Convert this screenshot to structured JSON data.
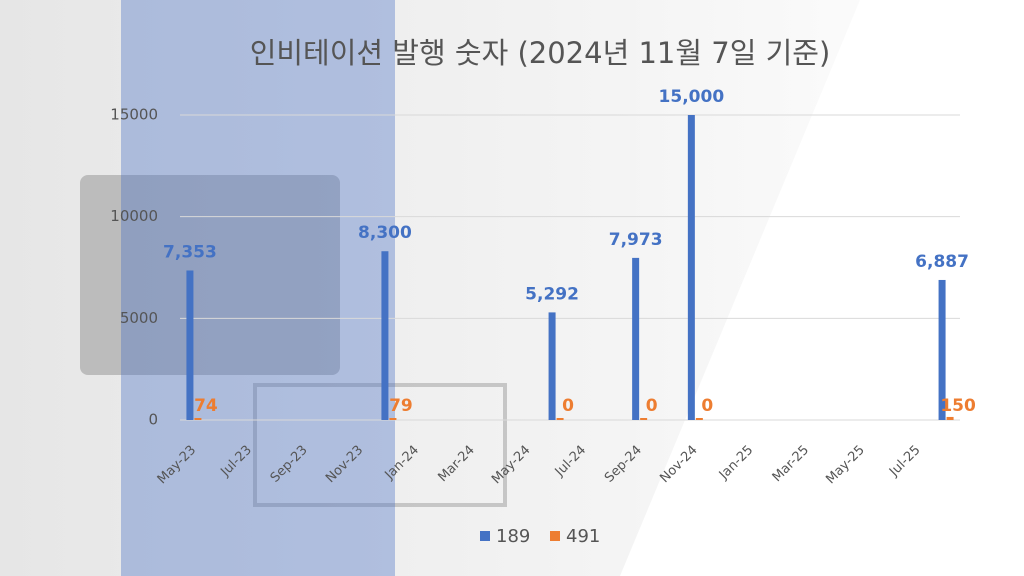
{
  "chart_data": {
    "type": "bar",
    "title": "인비테이션 발행 숫자 (2024년 11월 7일 기준)",
    "categories": [
      "May-23",
      null,
      "Jul-23",
      null,
      "Sep-23",
      null,
      "Nov-23",
      null,
      "Jan-24",
      null,
      "Mar-24",
      null,
      "May-24",
      null,
      "Jul-24",
      null,
      "Sep-24",
      null,
      "Nov-24",
      null,
      "Jan-25",
      null,
      "Mar-25",
      null,
      "May-25",
      null,
      "Jul-25",
      null
    ],
    "series": [
      {
        "name": "189",
        "color": "#4472c4",
        "values": [
          7353,
          null,
          null,
          null,
          null,
          null,
          null,
          8300,
          null,
          null,
          null,
          null,
          null,
          5292,
          null,
          null,
          7973,
          null,
          15000,
          null,
          null,
          null,
          null,
          null,
          null,
          null,
          null,
          6887
        ],
        "value_labels": [
          "7,353",
          null,
          null,
          null,
          null,
          null,
          null,
          "8,300",
          null,
          null,
          null,
          null,
          null,
          "5,292",
          null,
          null,
          "7,973",
          null,
          "15,000",
          null,
          null,
          null,
          null,
          null,
          null,
          null,
          null,
          "6,887"
        ]
      },
      {
        "name": "491",
        "color": "#ed7d31",
        "values": [
          74,
          null,
          null,
          null,
          null,
          null,
          null,
          79,
          null,
          null,
          null,
          null,
          null,
          0,
          null,
          null,
          0,
          null,
          0,
          null,
          null,
          null,
          null,
          null,
          null,
          null,
          null,
          150
        ]
      }
    ],
    "ylim": [
      0,
      15000
    ],
    "yticks": [
      0,
      5000,
      10000,
      15000
    ],
    "grid": true
  }
}
